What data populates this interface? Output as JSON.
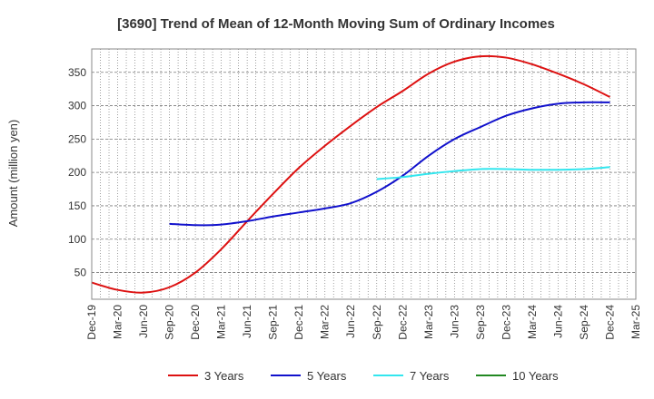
{
  "chart_data": {
    "type": "line",
    "title": "[3690]  Trend of Mean of 12-Month Moving Sum of Ordinary Incomes",
    "ylabel": "Amount (million yen)",
    "xlabel": "",
    "ylim": [
      10,
      385
    ],
    "yticks": [
      50,
      100,
      150,
      200,
      250,
      300,
      350
    ],
    "categories": [
      "Dec-19",
      "Mar-20",
      "Jun-20",
      "Sep-20",
      "Dec-20",
      "Mar-21",
      "Jun-21",
      "Sep-21",
      "Dec-21",
      "Mar-22",
      "Jun-22",
      "Sep-22",
      "Dec-22",
      "Mar-23",
      "Jun-23",
      "Sep-23",
      "Dec-23",
      "Mar-24",
      "Jun-24",
      "Sep-24",
      "Dec-24",
      "Mar-25"
    ],
    "grid": true,
    "legend_position": "bottom",
    "series": [
      {
        "name": "3 Years",
        "color": "#dd1111",
        "values": [
          35,
          24,
          20,
          28,
          50,
          85,
          127,
          168,
          207,
          240,
          270,
          298,
          322,
          348,
          366,
          374,
          372,
          362,
          348,
          332,
          313,
          null
        ]
      },
      {
        "name": "5 Years",
        "color": "#1111cc",
        "values": [
          null,
          null,
          null,
          123,
          121,
          122,
          127,
          134,
          140,
          146,
          154,
          171,
          195,
          225,
          250,
          268,
          285,
          296,
          303,
          305,
          305,
          null
        ]
      },
      {
        "name": "7 Years",
        "color": "#33e6ee",
        "values": [
          null,
          null,
          null,
          null,
          null,
          null,
          null,
          null,
          null,
          null,
          null,
          190,
          193,
          198,
          202,
          205,
          205,
          204,
          204,
          205,
          208,
          null
        ]
      },
      {
        "name": "10 Years",
        "color": "#228822",
        "values": [
          null,
          null,
          null,
          null,
          null,
          null,
          null,
          null,
          null,
          null,
          null,
          null,
          null,
          null,
          null,
          null,
          null,
          null,
          null,
          null,
          null,
          null
        ]
      }
    ]
  }
}
